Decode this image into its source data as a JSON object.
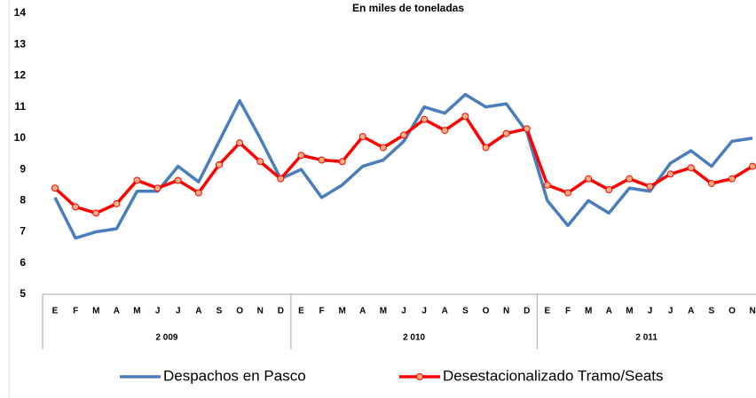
{
  "chart_data": {
    "type": "line",
    "title": "En miles de toneladas",
    "categories": [
      "E",
      "F",
      "M",
      "A",
      "M",
      "J",
      "J",
      "A",
      "S",
      "O",
      "N",
      "D",
      "E",
      "F",
      "M",
      "A",
      "M",
      "J",
      "J",
      "A",
      "S",
      "O",
      "N",
      "D",
      "E",
      "F",
      "M",
      "A",
      "M",
      "J",
      "J",
      "A",
      "S",
      "O",
      "N"
    ],
    "groups": [
      "2 009",
      "2 010",
      "2 011"
    ],
    "series": [
      {
        "name": "Despachos en Pasco",
        "color": "#4a7ebb",
        "marker": false,
        "values": [
          8.1,
          6.8,
          7.0,
          7.1,
          8.3,
          8.3,
          9.1,
          8.6,
          9.9,
          11.2,
          10.0,
          8.7,
          9.0,
          8.1,
          8.5,
          9.1,
          9.3,
          9.9,
          11.0,
          10.8,
          11.4,
          11.0,
          11.1,
          10.2,
          8.0,
          7.2,
          8.0,
          7.6,
          8.4,
          8.3,
          9.2,
          9.6,
          9.1,
          9.9,
          10.0
        ]
      },
      {
        "name": "Desestacionalizado Tramo/Seats",
        "color": "#ff0000",
        "marker": true,
        "values": [
          8.4,
          7.8,
          7.6,
          7.9,
          8.65,
          8.4,
          8.65,
          8.25,
          9.15,
          9.85,
          9.25,
          8.7,
          9.45,
          9.3,
          9.25,
          10.05,
          9.7,
          10.1,
          10.6,
          10.25,
          10.7,
          9.7,
          10.15,
          10.3,
          8.5,
          8.25,
          8.7,
          8.35,
          8.7,
          8.45,
          8.85,
          9.05,
          8.55,
          8.7,
          9.1
        ]
      }
    ],
    "ylim": [
      5,
      14
    ],
    "yticks": [
      5,
      6,
      7,
      8,
      9,
      10,
      11,
      12,
      13,
      14
    ],
    "grid": false,
    "legend": "bottom"
  }
}
